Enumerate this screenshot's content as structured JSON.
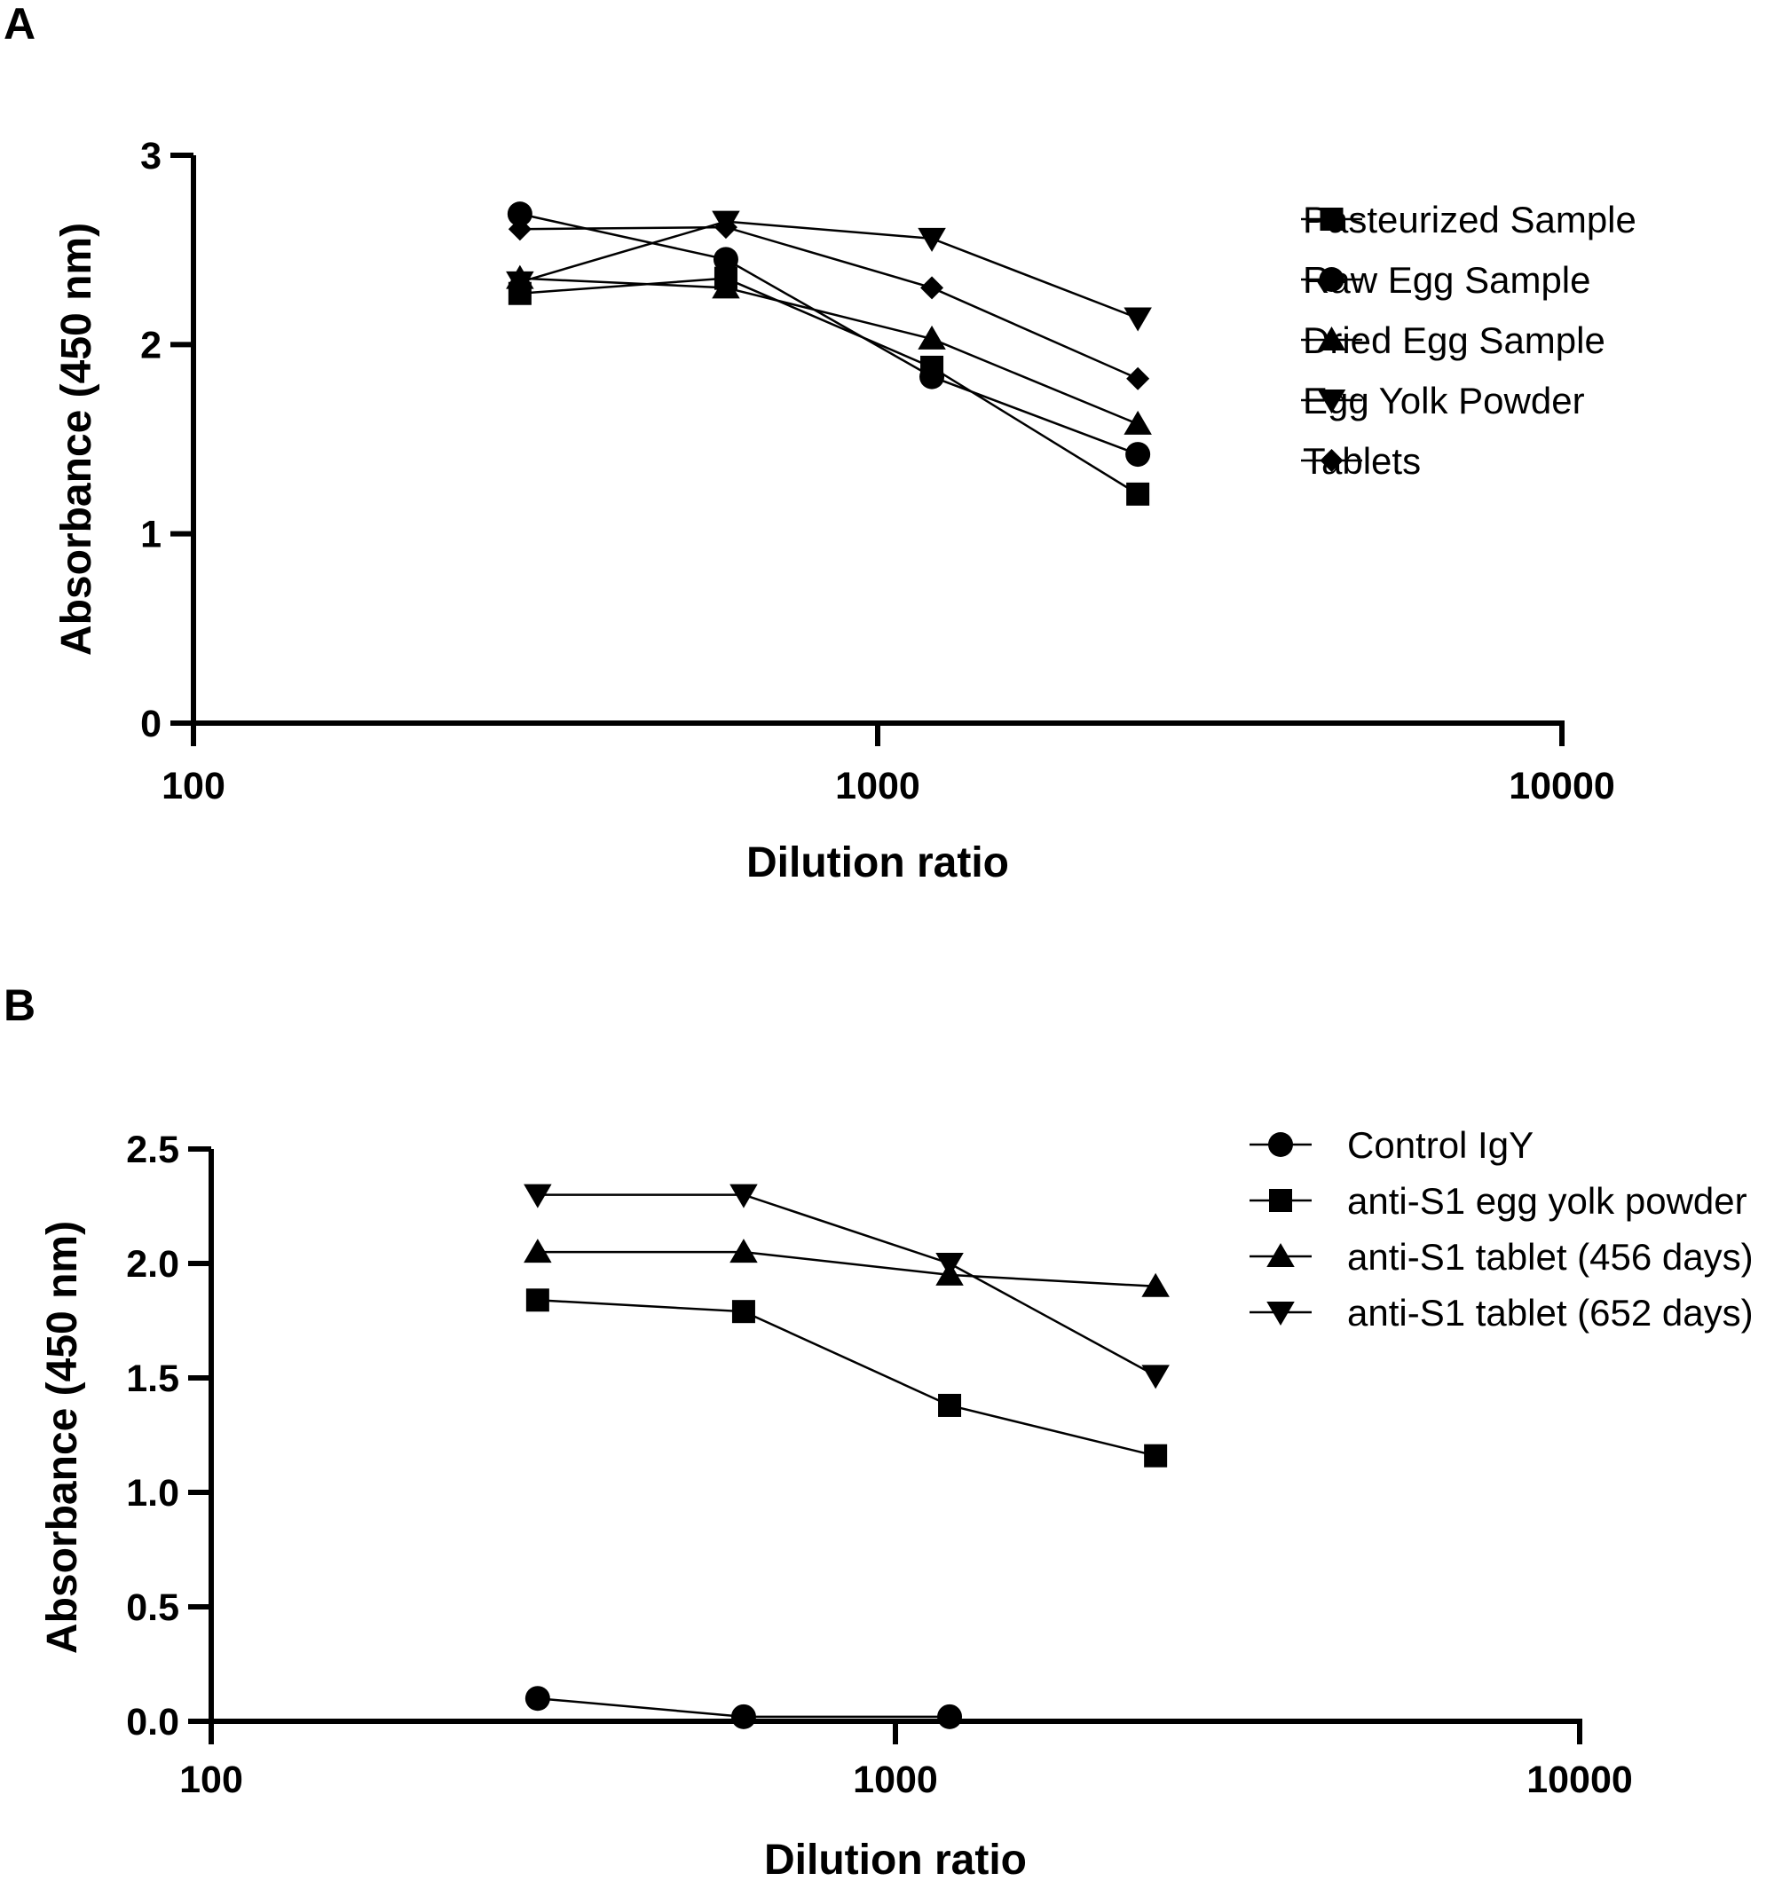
{
  "chart_data": [
    {
      "panel": "A",
      "type": "line",
      "title": "",
      "xlabel": "Dilution ratio",
      "ylabel": "Absorbance (450 nm)",
      "xscale": "log",
      "xlim": [
        100,
        10000
      ],
      "ylim": [
        0,
        3
      ],
      "xticks": [
        100,
        1000,
        10000
      ],
      "xtick_labels": [
        "100",
        "1000",
        "10000"
      ],
      "yticks": [
        0,
        1,
        2,
        3
      ],
      "ytick_labels": [
        "0",
        "1",
        "2",
        "3"
      ],
      "grid": false,
      "legend_position": "top-right",
      "x": [
        300,
        600,
        1200,
        2400
      ],
      "series": [
        {
          "name": "Pasteurized Sample",
          "marker": "square",
          "values": [
            2.27,
            2.35,
            1.88,
            1.21
          ]
        },
        {
          "name": "Raw Egg Sample",
          "marker": "circle",
          "values": [
            2.69,
            2.45,
            1.83,
            1.42
          ]
        },
        {
          "name": "Dried Egg Sample",
          "marker": "triangle-up",
          "values": [
            2.35,
            2.3,
            2.03,
            1.58
          ]
        },
        {
          "name": "Egg Yolk Powder",
          "marker": "triangle-down",
          "values": [
            2.33,
            2.65,
            2.56,
            2.14
          ]
        },
        {
          "name": "Tablets",
          "marker": "diamond",
          "values": [
            2.61,
            2.62,
            2.3,
            1.82
          ]
        }
      ]
    },
    {
      "panel": "B",
      "type": "line",
      "title": "",
      "xlabel": "Dilution ratio",
      "ylabel": "Absorbance (450 nm)",
      "xscale": "log",
      "xlim": [
        100,
        10000
      ],
      "ylim": [
        0,
        2.5
      ],
      "xticks": [
        100,
        1000,
        10000
      ],
      "xtick_labels": [
        "100",
        "1000",
        "10000"
      ],
      "yticks": [
        0,
        0.5,
        1,
        1.5,
        2,
        2.5
      ],
      "ytick_labels": [
        "0.0",
        "0.5",
        "1.0",
        "1.5",
        "2.0",
        "2.5"
      ],
      "grid": false,
      "legend_position": "top-right",
      "x": [
        300,
        600,
        1200,
        2400
      ],
      "series": [
        {
          "name": "Control IgY",
          "marker": "circle",
          "values": [
            0.1,
            0.02,
            0.02,
            null
          ]
        },
        {
          "name": "anti-S1 egg yolk powder",
          "marker": "square",
          "values": [
            1.84,
            1.79,
            1.38,
            1.16
          ]
        },
        {
          "name": "anti-S1 tablet (456 days)",
          "marker": "triangle-up",
          "values": [
            2.05,
            2.05,
            1.95,
            1.9
          ]
        },
        {
          "name": "anti-S1 tablet (652 days)",
          "marker": "triangle-down",
          "values": [
            2.3,
            2.3,
            2.0,
            1.51
          ]
        }
      ]
    }
  ]
}
